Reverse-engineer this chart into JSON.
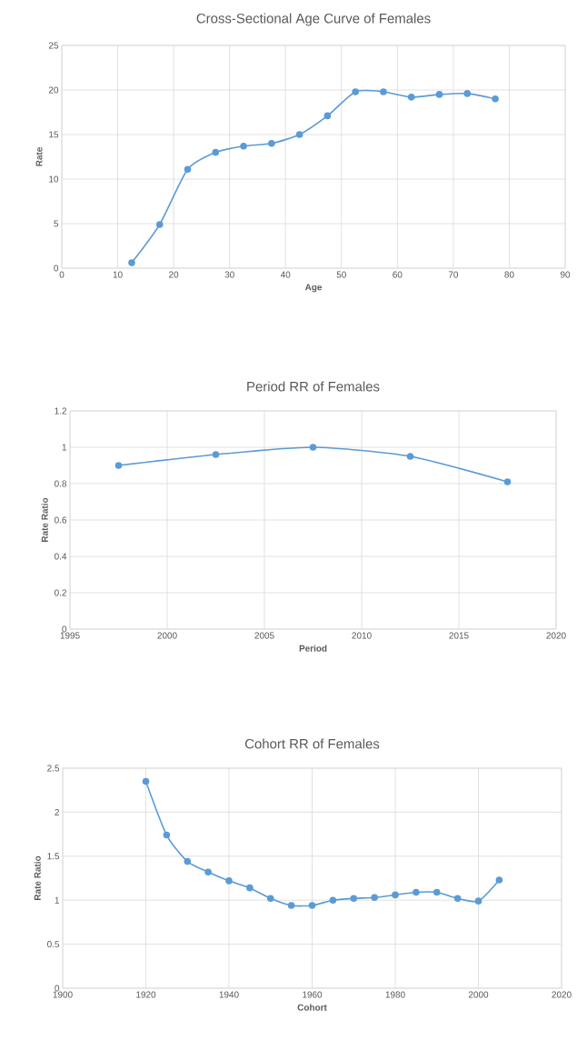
{
  "chart_data": [
    {
      "type": "line",
      "title": "Cross-Sectional Age Curve of Females",
      "xlabel": "Age",
      "ylabel": "Rate",
      "x": [
        12.5,
        17.5,
        22.5,
        27.5,
        32.5,
        37.5,
        42.5,
        47.5,
        52.5,
        57.5,
        62.5,
        67.5,
        72.5,
        77.5
      ],
      "series": [
        {
          "color": "#5b9bd5",
          "values": [
            0.6,
            4.9,
            11.1,
            13.0,
            13.7,
            14.0,
            15.0,
            17.1,
            19.8,
            19.8,
            19.2,
            19.5,
            19.6,
            19.0
          ]
        }
      ],
      "xlim": [
        0,
        90
      ],
      "xticks": [
        0,
        10,
        20,
        30,
        40,
        50,
        60,
        70,
        80,
        90
      ],
      "ylim": [
        0,
        25
      ],
      "yticks": [
        0,
        5,
        10,
        15,
        20,
        25
      ],
      "grid": true,
      "marker": "circle"
    },
    {
      "type": "line",
      "title": "Period RR of Females",
      "xlabel": "Period",
      "ylabel": "Rate Ratio",
      "x": [
        1997.5,
        2002.5,
        2007.5,
        2012.5,
        2017.5
      ],
      "series": [
        {
          "color": "#5b9bd5",
          "values": [
            0.9,
            0.96,
            1.0,
            0.95,
            0.81
          ]
        }
      ],
      "xlim": [
        1995,
        2020
      ],
      "xticks": [
        1995,
        2000,
        2005,
        2010,
        2015,
        2020
      ],
      "ylim": [
        0,
        1.2
      ],
      "yticks": [
        0,
        0.2,
        0.4,
        0.6,
        0.8,
        1,
        1.2
      ],
      "grid": true,
      "marker": "circle"
    },
    {
      "type": "line",
      "title": "Cohort RR of Females",
      "xlabel": "Cohort",
      "ylabel": "Rate Ratio",
      "x": [
        1920,
        1925,
        1930,
        1935,
        1940,
        1945,
        1950,
        1955,
        1960,
        1965,
        1970,
        1975,
        1980,
        1985,
        1990,
        1995,
        2000,
        2005
      ],
      "series": [
        {
          "color": "#5b9bd5",
          "values": [
            2.35,
            1.74,
            1.44,
            1.32,
            1.22,
            1.14,
            1.02,
            0.94,
            0.94,
            1.0,
            1.02,
            1.03,
            1.06,
            1.09,
            1.09,
            1.02,
            0.99,
            1.23
          ]
        }
      ],
      "xlim": [
        1900,
        2020
      ],
      "xticks": [
        1900,
        1920,
        1940,
        1960,
        1980,
        2000,
        2020
      ],
      "ylim": [
        0,
        2.5
      ],
      "yticks": [
        0,
        0.5,
        1,
        1.5,
        2,
        2.5
      ],
      "grid": true,
      "marker": "circle"
    }
  ]
}
